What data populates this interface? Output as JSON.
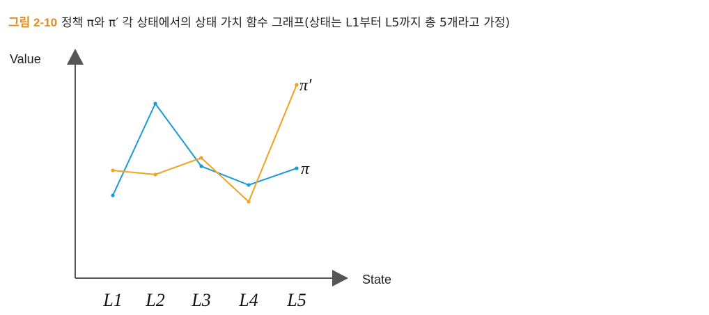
{
  "caption": {
    "label": "그림 2-10",
    "text": "정책 π와 π′ 각 상태에서의 상태 가치 함수 그래프(상태는 L1부터 L5까지 총 5개라고 가정)"
  },
  "colors": {
    "pi": "#1a9ad6",
    "pi_prime": "#f0a31c",
    "axis": "#555555"
  },
  "chart_data": {
    "type": "line",
    "title": "",
    "xlabel": "State",
    "ylabel": "Value",
    "categories": [
      "L1",
      "L2",
      "L3",
      "L4",
      "L5"
    ],
    "ylim": [
      0,
      10
    ],
    "grid": false,
    "series": [
      {
        "name": "π",
        "color": "#1a9ad6",
        "values": [
          3.8,
          8.2,
          5.2,
          4.3,
          5.1
        ]
      },
      {
        "name": "π′",
        "color": "#f0a31c",
        "values": [
          5.0,
          4.8,
          5.6,
          3.5,
          9.1
        ]
      }
    ]
  }
}
